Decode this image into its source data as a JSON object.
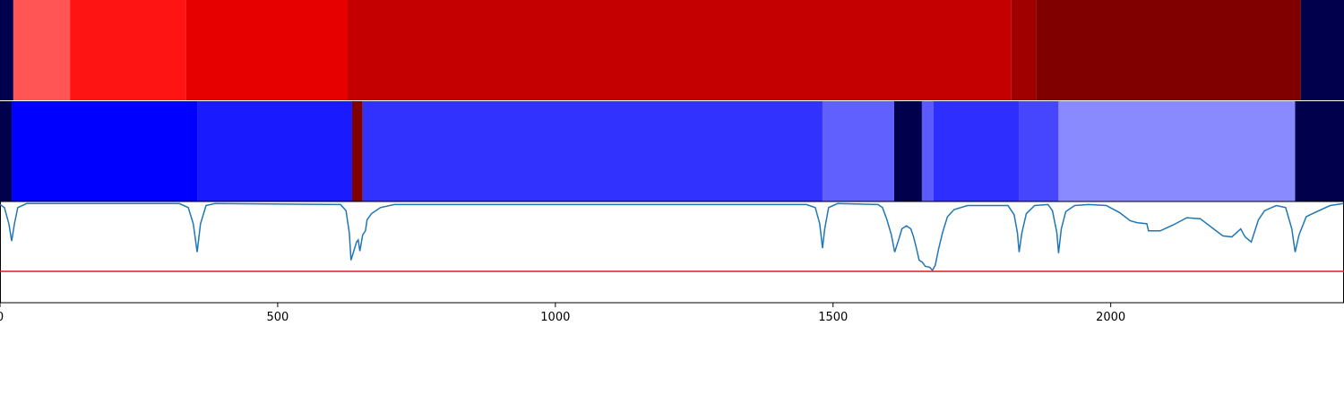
{
  "chart_data": [
    {
      "type": "heatmap",
      "xlim": [
        0,
        2420
      ],
      "edges": [
        0,
        24,
        126,
        335,
        626,
        1821,
        1866,
        2342,
        2420
      ],
      "colors": [
        "#00004c",
        "#ff5555",
        "#ff1414",
        "#e60000",
        "#c40000",
        "#a00000",
        "#800000",
        "#00004c"
      ]
    },
    {
      "type": "heatmap",
      "xlim": [
        0,
        2420
      ],
      "edges": [
        0,
        21,
        355,
        634,
        653,
        1481,
        1610,
        1660,
        1681,
        1835,
        1906,
        2332,
        2420
      ],
      "colors": [
        "#00004c",
        "#0000ff",
        "#1a1aff",
        "#800000",
        "#3232ff",
        "#6060ff",
        "#00004c",
        "#5a5aff",
        "#2e2eff",
        "#4646ff",
        "#8a8aff",
        "#00004c"
      ]
    },
    {
      "type": "line",
      "xlim": [
        0,
        2420
      ],
      "ylim": [
        0,
        1
      ],
      "xticks": [
        0,
        500,
        1000,
        1500,
        2000
      ],
      "hline": {
        "value": 0.31,
        "color": "#e41a1c"
      },
      "x": [
        0,
        8,
        16,
        21,
        26,
        32,
        48,
        323,
        339,
        348,
        355,
        361,
        371,
        387,
        613,
        623,
        629,
        632,
        637,
        642,
        645,
        648,
        653,
        658,
        661,
        669,
        685,
        710,
        1452,
        1468,
        1476,
        1481,
        1485,
        1492,
        1508,
        1581,
        1589,
        1597,
        1605,
        1611,
        1618,
        1624,
        1632,
        1640,
        1645,
        1650,
        1655,
        1661,
        1666,
        1674,
        1679,
        1684,
        1690,
        1697,
        1706,
        1718,
        1742,
        1790,
        1815,
        1826,
        1832,
        1835,
        1840,
        1848,
        1863,
        1887,
        1895,
        1903,
        1906,
        1911,
        1919,
        1935,
        1960,
        1992,
        2016,
        2035,
        2048,
        2065,
        2068,
        2089,
        2113,
        2137,
        2161,
        2185,
        2202,
        2218,
        2226,
        2234,
        2242,
        2253,
        2266,
        2277,
        2298,
        2315,
        2326,
        2332,
        2339,
        2352,
        2371,
        2395,
        2419
      ],
      "series": [
        {
          "color": "#1f77b4",
          "values": [
            0.97,
            0.94,
            0.78,
            0.61,
            0.78,
            0.94,
            0.98,
            0.98,
            0.94,
            0.78,
            0.5,
            0.78,
            0.96,
            0.98,
            0.97,
            0.91,
            0.69,
            0.42,
            0.51,
            0.6,
            0.62,
            0.51,
            0.67,
            0.71,
            0.82,
            0.88,
            0.94,
            0.97,
            0.97,
            0.94,
            0.78,
            0.54,
            0.73,
            0.94,
            0.98,
            0.97,
            0.94,
            0.82,
            0.67,
            0.5,
            0.62,
            0.73,
            0.76,
            0.73,
            0.65,
            0.54,
            0.42,
            0.4,
            0.36,
            0.35,
            0.32,
            0.37,
            0.53,
            0.69,
            0.85,
            0.92,
            0.96,
            0.96,
            0.96,
            0.87,
            0.69,
            0.5,
            0.69,
            0.88,
            0.96,
            0.97,
            0.91,
            0.69,
            0.49,
            0.73,
            0.9,
            0.96,
            0.97,
            0.96,
            0.89,
            0.81,
            0.79,
            0.78,
            0.71,
            0.71,
            0.77,
            0.84,
            0.83,
            0.73,
            0.66,
            0.65,
            0.69,
            0.73,
            0.65,
            0.6,
            0.82,
            0.91,
            0.96,
            0.94,
            0.73,
            0.5,
            0.67,
            0.85,
            0.9,
            0.96,
            0.98
          ]
        }
      ]
    }
  ]
}
